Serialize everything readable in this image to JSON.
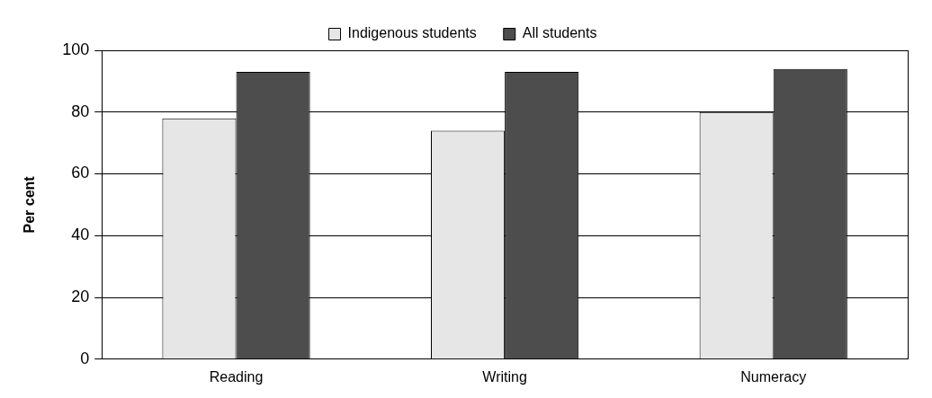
{
  "chart_data": {
    "type": "bar",
    "ylabel": "Per cent",
    "categories": [
      "Reading",
      "Writing",
      "Numeracy"
    ],
    "series": [
      {
        "name": "Indigenous students",
        "color": "#e6e6e6",
        "values": [
          78,
          74,
          80
        ]
      },
      {
        "name": "All students",
        "color": "#4d4d4d",
        "values": [
          93,
          93,
          94
        ]
      }
    ],
    "ylim": [
      0,
      100
    ],
    "yticks": [
      0,
      20,
      40,
      60,
      80,
      100
    ],
    "grid": "y",
    "legend": "top"
  }
}
